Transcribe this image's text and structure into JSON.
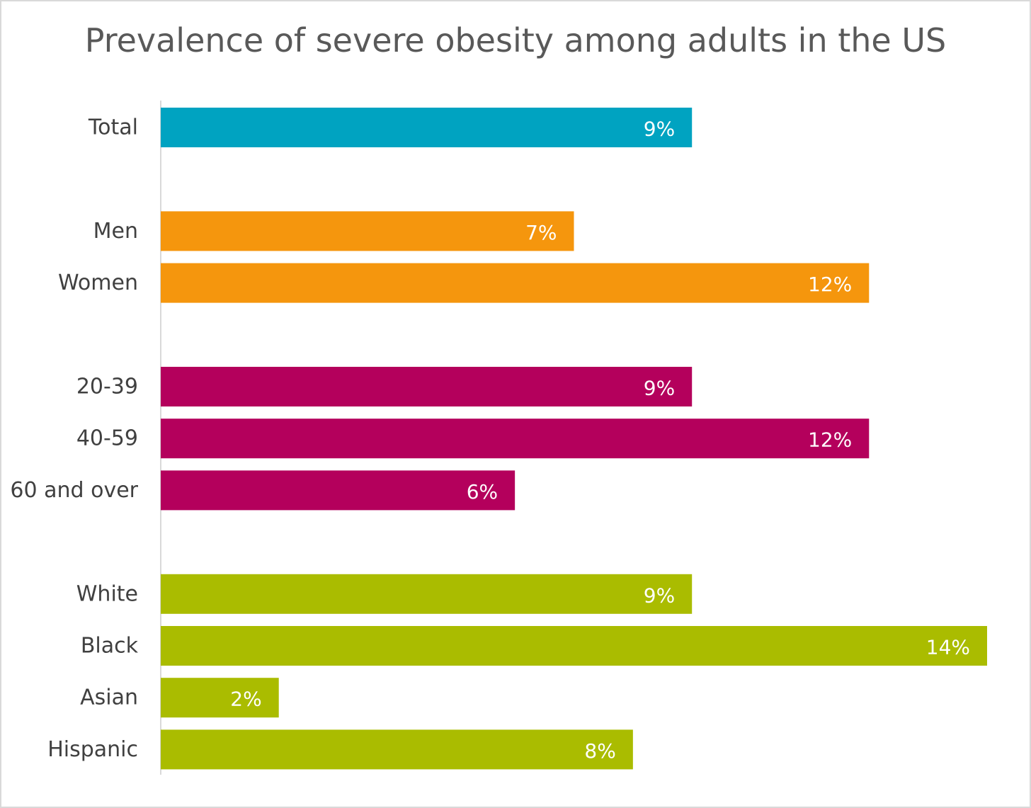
{
  "chart_data": {
    "type": "bar",
    "orientation": "horizontal",
    "title": "Prevalence of severe obesity among adults in the US",
    "xlabel": "",
    "ylabel": "",
    "xlim": [
      0,
      14
    ],
    "grid": false,
    "legend": "none",
    "unit": "%",
    "groups": [
      {
        "color": "#00a3c1",
        "bars": [
          {
            "category": "Total",
            "value": 9,
            "label": "9%"
          }
        ]
      },
      {
        "color": "#f5960d",
        "bars": [
          {
            "category": "Men",
            "value": 7,
            "label": "7%"
          },
          {
            "category": "Women",
            "value": 12,
            "label": "12%"
          }
        ]
      },
      {
        "color": "#b4005c",
        "bars": [
          {
            "category": "20-39",
            "value": 9,
            "label": "9%"
          },
          {
            "category": "40-59",
            "value": 12,
            "label": "12%"
          },
          {
            "category": "60 and over",
            "value": 6,
            "label": "6%"
          }
        ]
      },
      {
        "color": "#aabc00",
        "bars": [
          {
            "category": "White",
            "value": 9,
            "label": "9%"
          },
          {
            "category": "Black",
            "value": 14,
            "label": "14%"
          },
          {
            "category": "Asian",
            "value": 2,
            "label": "2%"
          },
          {
            "category": "Hispanic",
            "value": 8,
            "label": "8%"
          }
        ]
      }
    ],
    "colors": {
      "axis_line": "#d9d9d9",
      "category_text": "#404040",
      "title_text": "#595959"
    }
  }
}
